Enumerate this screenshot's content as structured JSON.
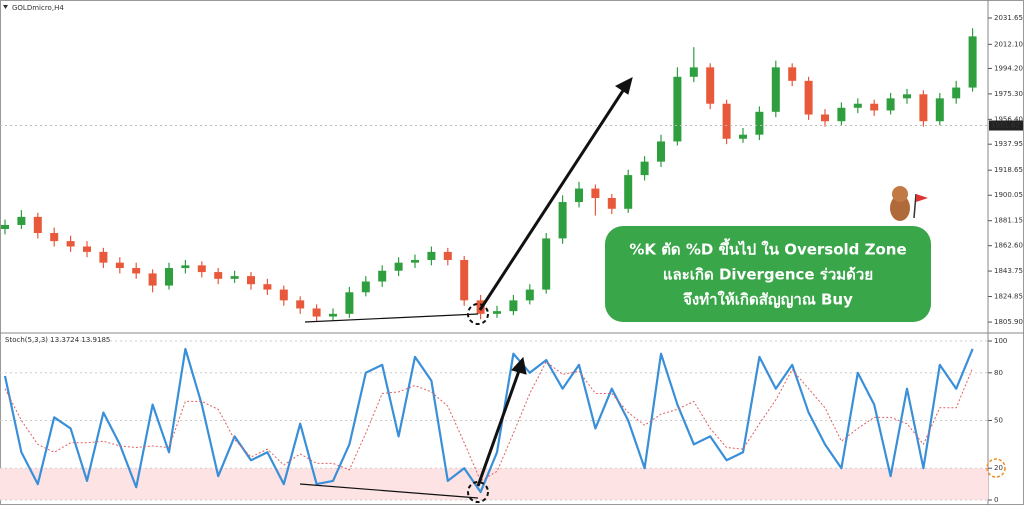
{
  "chart_data": [
    {
      "type": "candlestick",
      "title": "GOLDmicro,H4",
      "open": [
        1875,
        1878,
        1884,
        1872,
        1866,
        1862,
        1858,
        1850,
        1846,
        1842,
        1833,
        1846,
        1848,
        1843,
        1838,
        1840,
        1834,
        1830,
        1822,
        1816,
        1810,
        1812,
        1828,
        1836,
        1844,
        1850,
        1852,
        1858,
        1852,
        1822,
        1812,
        1814,
        1822,
        1830,
        1868,
        1895,
        1905,
        1898,
        1890,
        1915,
        1925,
        1940,
        1988,
        1995,
        1968,
        1942,
        1945,
        1962,
        1995,
        1985,
        1960,
        1955,
        1965,
        1968,
        1963,
        1972,
        1975,
        1955,
        1972,
        1980
      ],
      "high": [
        1882,
        1889,
        1887,
        1876,
        1870,
        1866,
        1861,
        1854,
        1850,
        1845,
        1850,
        1852,
        1851,
        1846,
        1844,
        1843,
        1838,
        1833,
        1825,
        1819,
        1816,
        1832,
        1840,
        1848,
        1854,
        1856,
        1862,
        1861,
        1855,
        1826,
        1818,
        1826,
        1834,
        1872,
        1900,
        1910,
        1908,
        1901,
        1919,
        1929,
        1945,
        1995,
        2010,
        1998,
        1971,
        1950,
        1966,
        2000,
        1998,
        1988,
        1964,
        1969,
        1972,
        1971,
        1976,
        1979,
        1978,
        1976,
        1985,
        2024
      ],
      "low": [
        1871,
        1875,
        1868,
        1862,
        1858,
        1854,
        1846,
        1842,
        1838,
        1828,
        1830,
        1842,
        1839,
        1834,
        1835,
        1830,
        1826,
        1818,
        1812,
        1806,
        1807,
        1809,
        1825,
        1832,
        1840,
        1846,
        1848,
        1848,
        1818,
        1808,
        1809,
        1811,
        1819,
        1827,
        1864,
        1891,
        1885,
        1886,
        1887,
        1911,
        1921,
        1937,
        1984,
        1964,
        1938,
        1939,
        1941,
        1958,
        1981,
        1956,
        1951,
        1952,
        1961,
        1959,
        1960,
        1968,
        1951,
        1952,
        1968,
        1977
      ],
      "close": [
        1878,
        1884,
        1872,
        1866,
        1862,
        1858,
        1850,
        1846,
        1842,
        1833,
        1846,
        1848,
        1843,
        1838,
        1840,
        1834,
        1830,
        1822,
        1816,
        1810,
        1812,
        1828,
        1836,
        1844,
        1850,
        1852,
        1858,
        1852,
        1822,
        1812,
        1814,
        1822,
        1830,
        1868,
        1895,
        1905,
        1898,
        1890,
        1915,
        1925,
        1940,
        1988,
        1995,
        1968,
        1942,
        1945,
        1962,
        1995,
        1985,
        1960,
        1955,
        1965,
        1968,
        1963,
        1972,
        1975,
        1955,
        1972,
        1980,
        2018
      ],
      "up_color": "#2e9e3e",
      "down_color": "#e8583a",
      "current_price": 1951.82,
      "ylim": [
        1800,
        2041.3
      ],
      "yticks": [
        2031.65,
        {
          "value": 2012.1,
          "label": "2012.10"
        },
        {
          "value": 1994.2,
          "label": "1994.20"
        },
        {
          "value": 1975.3,
          "label": "1975.30"
        },
        {
          "value": 1956.4,
          "label": "1956.40"
        },
        1937.95,
        1918.65,
        1900.05,
        1881.15,
        {
          "value": 1862.6,
          "label": "1862.60"
        },
        1843.75,
        1824.85,
        {
          "value": 1805.9,
          "label": "1805.90"
        }
      ],
      "annotations": [
        "%K ตัด %D ขึ้นไป ใน Oversold Zone",
        "และเกิด Divergence ร่วมด้วย",
        "จึงทำให้เกิดสัญญาณ Buy"
      ]
    },
    {
      "type": "line",
      "title": "Stoch(5,3,3) 13.3724 13.9185",
      "series": [
        {
          "color": "#3a8fd9",
          "values": [
            78,
            30,
            10,
            52,
            45,
            12,
            55,
            35,
            8,
            60,
            30,
            95,
            60,
            15,
            40,
            25,
            30,
            10,
            48,
            10,
            12,
            35,
            80,
            85,
            40,
            90,
            75,
            12,
            20,
            5,
            30,
            92,
            80,
            88,
            70,
            85,
            45,
            70,
            50,
            20,
            92,
            60,
            35,
            40,
            25,
            30,
            90,
            70,
            85,
            55,
            35,
            20,
            80,
            60,
            15,
            70,
            20,
            85,
            70,
            95
          ]
        },
        {
          "color": "#e06060",
          "values": [
            70,
            50,
            35,
            30,
            36,
            36,
            37,
            34,
            33,
            34,
            33,
            62,
            62,
            57,
            38,
            27,
            32,
            22,
            29,
            23,
            23,
            19,
            42,
            67,
            68,
            72,
            68,
            59,
            36,
            12,
            18,
            42,
            67,
            87,
            79,
            81,
            67,
            67,
            55,
            47,
            54,
            57,
            62,
            45,
            33,
            32,
            48,
            63,
            82,
            70,
            58,
            37,
            45,
            52,
            52,
            48,
            35,
            58,
            58,
            83
          ]
        }
      ],
      "zone_color": "#fde3e3",
      "ylim": [
        0,
        100
      ],
      "yticks": [
        100,
        80,
        50,
        20,
        0
      ]
    }
  ]
}
